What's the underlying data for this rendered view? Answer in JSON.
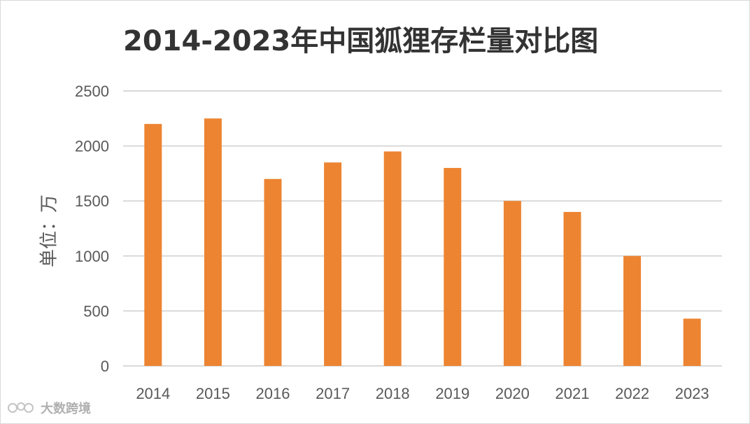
{
  "chart_data": {
    "type": "bar",
    "title": "2014-2023年中国狐狸存栏量对比图",
    "ylabel": "单位：万",
    "xlabel": "",
    "categories": [
      "2014",
      "2015",
      "2016",
      "2017",
      "2018",
      "2019",
      "2020",
      "2021",
      "2022",
      "2023"
    ],
    "values": [
      2200,
      2250,
      1700,
      1850,
      1950,
      1800,
      1500,
      1400,
      1000,
      430
    ],
    "ylim": [
      0,
      2500
    ],
    "yticks": [
      "0",
      "500",
      "1000",
      "1500",
      "2000",
      "2500"
    ],
    "grid": true,
    "legend": "none",
    "bar_color": "#ED8431",
    "grid_color": "#D9D9D9"
  },
  "watermark": {
    "text": "大数跨境"
  }
}
